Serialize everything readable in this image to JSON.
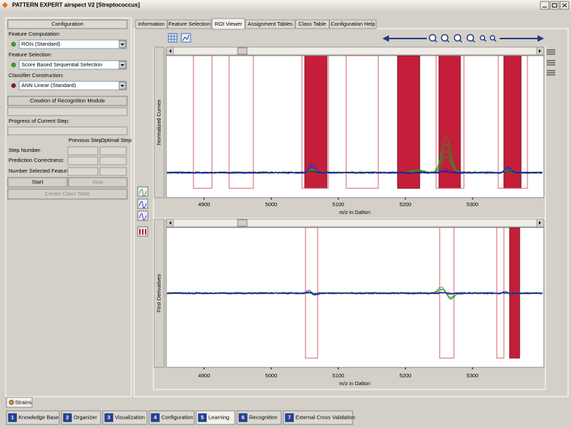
{
  "window": {
    "title": "PATTERN EXPERT airspect V2 [Streptococcus]"
  },
  "config": {
    "header": "Configuration",
    "feature_computation": {
      "label": "Feature Computation:",
      "value": "ROIs (Standard)"
    },
    "feature_selection": {
      "label": "Feature Selection:",
      "value": "Score Based Sequential Selection"
    },
    "classifier": {
      "label": "Classifier Construction:",
      "value": "ANN Linear (Standard)"
    },
    "creation_button": "Creation of Recognition Module",
    "progress_label": "Progress of Current Step:",
    "stats": {
      "columns": [
        "Previous Step",
        "Optimal Step"
      ],
      "rows": [
        "Step Number:",
        "Prediction Correctness:",
        "Number Selected Features:"
      ]
    },
    "start": "Start",
    "stop": "Stop",
    "create_class_table": "Create Class Table"
  },
  "tabs": [
    "Information",
    "Feature Selection",
    "ROI Viewer",
    "Assignment Tables",
    "Class Table",
    "Configuration Help"
  ],
  "plots": [
    {
      "ylabel": "Normalized Curves",
      "xlabel": "m/z in Dalton",
      "xticks": [
        4900,
        5000,
        5100,
        5200,
        5300
      ]
    },
    {
      "ylabel": "First Derivatives",
      "xlabel": "m/z in Dalton",
      "xticks": [
        4900,
        5000,
        5100,
        5200,
        5300
      ]
    }
  ],
  "strains_tab": "Strains",
  "bottom_tabs": [
    {
      "number": "1",
      "label": "Knowledge Base"
    },
    {
      "number": "2",
      "label": "Organizer"
    },
    {
      "number": "3",
      "label": "Visualization"
    },
    {
      "number": "4",
      "label": "Configuration"
    },
    {
      "number": "5",
      "label": "Learning"
    },
    {
      "number": "6",
      "label": "Recognition"
    },
    {
      "number": "7",
      "label": "External Cross Validation"
    }
  ]
}
